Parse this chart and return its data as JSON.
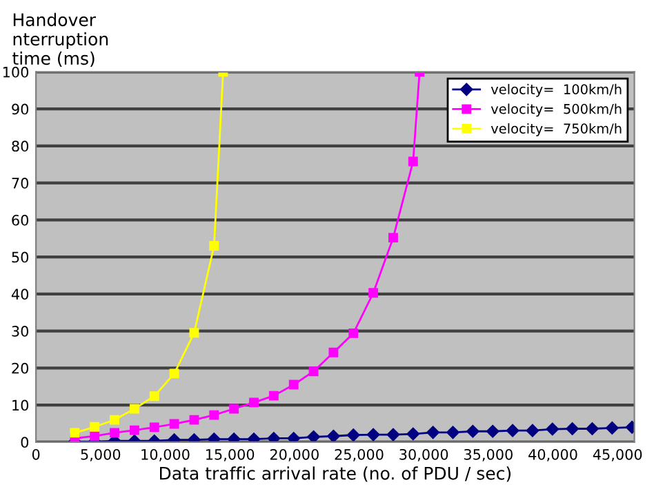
{
  "chart_data": {
    "type": "line",
    "xlabel": "Data traffic arrival rate (no. of PDU / sec)",
    "ylabel": "Handover\nnterruption\ntime (ms)",
    "xlim": [
      0,
      46300
    ],
    "ylim": [
      0,
      100
    ],
    "xticks": [
      0,
      {
        "value": 5000,
        "label": "5,000"
      },
      {
        "value": 10000,
        "label": "10,000"
      },
      {
        "value": 15000,
        "label": "15,000"
      },
      {
        "value": 20000,
        "label": "20,000"
      },
      {
        "value": 25000,
        "label": "25,000"
      },
      {
        "value": 30000,
        "label": "30,000"
      },
      {
        "value": 35000,
        "label": "35,000"
      },
      {
        "value": 40000,
        "label": "40,000"
      },
      {
        "value": 45000,
        "label": "45,000"
      }
    ],
    "yticks": [
      0,
      10,
      20,
      30,
      40,
      50,
      60,
      70,
      80,
      90,
      100
    ],
    "grid": "y",
    "legend": "top right",
    "series": [
      {
        "name": "velocity=  100km/h",
        "color": "#000080",
        "marker": "diamond",
        "x": [
          3000,
          4540,
          6080,
          7620,
          9160,
          10700,
          12240,
          13780,
          15320,
          16860,
          18400,
          19940,
          21480,
          23020,
          24560,
          26100,
          27640,
          29180,
          30720,
          32260,
          33800,
          35340,
          36880,
          38420,
          39960,
          41500,
          43040,
          44580,
          46120
        ],
        "values": [
          0.1,
          0.1,
          0.3,
          0.3,
          0.3,
          0.6,
          0.6,
          0.8,
          0.8,
          0.8,
          1.0,
          1.0,
          1.4,
          1.6,
          1.9,
          2.0,
          2.0,
          2.2,
          2.6,
          2.6,
          2.9,
          2.9,
          3.1,
          3.1,
          3.5,
          3.6,
          3.6,
          3.8,
          4.0
        ]
      },
      {
        "name": "velocity=  500km/h",
        "color": "#ff00ff",
        "marker": "square",
        "x": [
          3000,
          4540,
          6080,
          7620,
          9160,
          10700,
          12240,
          13780,
          15320,
          16860,
          18400,
          19940,
          21480,
          23020,
          24560,
          26100,
          27640,
          29180,
          29680
        ],
        "values": [
          1.0,
          1.6,
          2.5,
          3.2,
          4.0,
          4.9,
          6.0,
          7.3,
          9.0,
          10.7,
          12.5,
          15.5,
          19.1,
          24.2,
          29.4,
          40.3,
          55.2,
          75.8,
          100
        ]
      },
      {
        "name": "velocity=  750km/h",
        "color": "#ffff00",
        "marker": "square",
        "x": [
          3000,
          4540,
          6080,
          7620,
          9160,
          10700,
          12240,
          13780,
          14480
        ],
        "values": [
          2.5,
          4.1,
          6.0,
          9.0,
          12.4,
          18.5,
          29.5,
          53,
          100
        ]
      }
    ]
  }
}
